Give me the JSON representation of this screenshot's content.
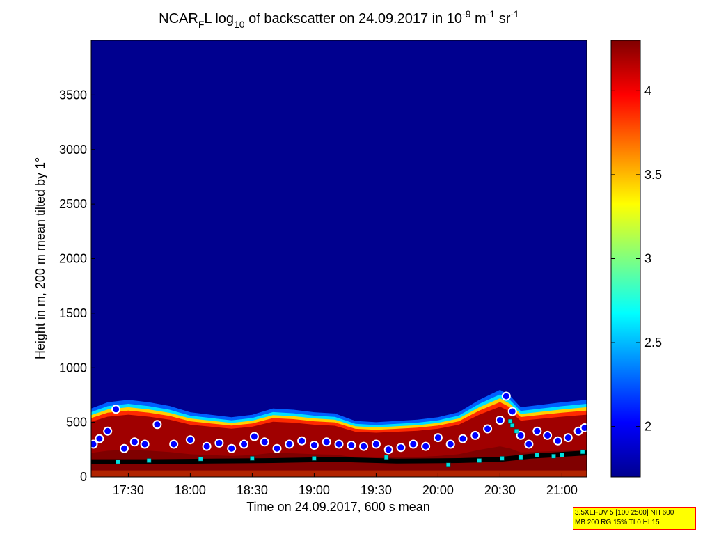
{
  "chart_data": {
    "type": "heatmap",
    "title": {
      "prefix": "NCAR",
      "sub1": "F",
      "mid": "L log",
      "sub2": "10",
      "rest": " of backscatter on 24.09.2017 in 10",
      "sup1": "-9",
      "unit1": " m",
      "sup2": "-1",
      "unit2": " sr",
      "sup3": "-1"
    },
    "xlabel": "Time on 24.09.2017, 600 s mean",
    "ylabel": "Height in m, 200 m mean tilted by 1°",
    "x_ticks": [
      "17:30",
      "18:00",
      "18:30",
      "19:00",
      "19:30",
      "20:00",
      "20:30",
      "21:00"
    ],
    "x_range": [
      "17:12",
      "21:12"
    ],
    "y_ticks": [
      0,
      500,
      1000,
      1500,
      2000,
      2500,
      3000,
      3500
    ],
    "ylim": [
      0,
      4000
    ],
    "colorbar": {
      "ticks": [
        2,
        2.5,
        3,
        3.5,
        4
      ],
      "range": [
        1.7,
        4.3
      ],
      "colormap": "jet"
    },
    "colors": {
      "background": "#00008f",
      "high": "#800000"
    },
    "layer_top": {
      "times": [
        "17:12",
        "17:20",
        "17:30",
        "17:40",
        "17:50",
        "18:00",
        "18:10",
        "18:20",
        "18:30",
        "18:40",
        "18:50",
        "19:00",
        "19:10",
        "19:20",
        "19:30",
        "19:40",
        "19:50",
        "20:00",
        "20:10",
        "20:20",
        "20:30",
        "20:35",
        "20:40",
        "20:50",
        "21:00",
        "21:12"
      ],
      "heights": [
        550,
        600,
        620,
        600,
        570,
        520,
        500,
        480,
        500,
        550,
        540,
        520,
        510,
        450,
        440,
        450,
        460,
        480,
        520,
        620,
        700,
        650,
        560,
        580,
        600,
        620
      ]
    },
    "cloud_base_markers": {
      "times": [
        "17:13",
        "17:16",
        "17:20",
        "17:24",
        "17:28",
        "17:33",
        "17:38",
        "17:44",
        "17:52",
        "18:00",
        "18:08",
        "18:14",
        "18:20",
        "18:26",
        "18:31",
        "18:36",
        "18:42",
        "18:48",
        "18:54",
        "19:00",
        "19:06",
        "19:12",
        "19:18",
        "19:24",
        "19:30",
        "19:36",
        "19:42",
        "19:48",
        "19:54",
        "20:00",
        "20:06",
        "20:12",
        "20:18",
        "20:24",
        "20:30",
        "20:33",
        "20:36",
        "20:40",
        "20:44",
        "20:48",
        "20:53",
        "20:58",
        "21:03",
        "21:08",
        "21:11"
      ],
      "heights": [
        300,
        350,
        420,
        620,
        260,
        320,
        300,
        480,
        300,
        340,
        280,
        310,
        260,
        300,
        370,
        320,
        260,
        300,
        330,
        290,
        320,
        300,
        290,
        280,
        300,
        250,
        270,
        300,
        280,
        360,
        300,
        350,
        380,
        440,
        520,
        740,
        600,
        380,
        300,
        420,
        380,
        330,
        360,
        420,
        450
      ]
    },
    "mixing_layer": {
      "times": [
        "17:12",
        "17:40",
        "18:10",
        "18:40",
        "19:10",
        "19:40",
        "20:10",
        "20:30",
        "20:45",
        "21:12"
      ],
      "heights": [
        140,
        140,
        145,
        150,
        160,
        145,
        150,
        160,
        190,
        220
      ]
    },
    "cyan_markers": {
      "times": [
        "17:25",
        "17:40",
        "18:05",
        "18:30",
        "19:00",
        "19:35",
        "20:05",
        "20:20",
        "20:31",
        "20:35",
        "20:36",
        "20:38",
        "20:40",
        "20:48",
        "20:56",
        "21:00",
        "21:10"
      ],
      "heights": [
        140,
        150,
        165,
        170,
        170,
        180,
        110,
        150,
        170,
        510,
        470,
        420,
        180,
        200,
        190,
        200,
        230
      ]
    }
  },
  "info_box": {
    "line1": "3.5XEFUV 5 [100 2500] NH 600",
    "line2": "MB 200 RG 15% TI 0 HI 15"
  }
}
